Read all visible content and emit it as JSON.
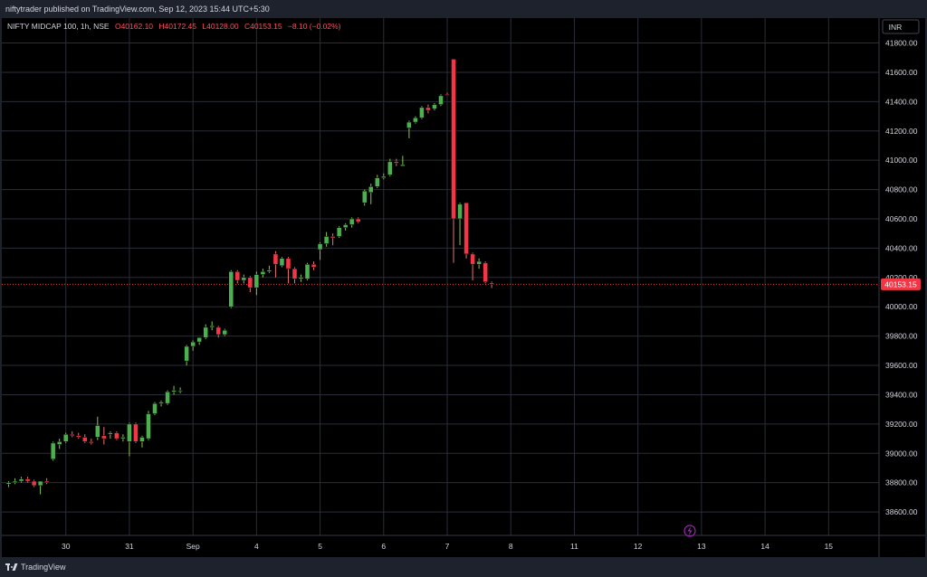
{
  "header": {
    "published": "niftytrader published on TradingView.com, Sep 12, 2023 15:44 UTC+5:30"
  },
  "legend": {
    "symbol": "NIFTY MIDCAP 100, 1h, NSE",
    "open": "O40162.10",
    "high": "H40172.45",
    "low": "L40128.00",
    "close": "C40153.15",
    "change": "−8.10 (−0.02%)"
  },
  "currency_button": "INR",
  "footer": {
    "brand": "TradingView"
  },
  "colors": {
    "up": "#4caf50",
    "down": "#f23645",
    "grid": "#2a2e39",
    "price_line": "#f23645",
    "text": "#d1d4dc",
    "background": "#000000"
  },
  "chart_data": {
    "type": "candlestick",
    "ylim": [
      38440,
      41970
    ],
    "yticks": [
      38600,
      38800,
      39000,
      39200,
      39400,
      39600,
      39800,
      40000,
      40200,
      40400,
      40600,
      40800,
      41000,
      41200,
      41400,
      41600,
      41800
    ],
    "x_axis_ticks": [
      {
        "label": "30",
        "index": 9
      },
      {
        "label": "31",
        "index": 19
      },
      {
        "label": "Sep",
        "index": 29
      },
      {
        "label": "4",
        "index": 39
      },
      {
        "label": "5",
        "index": 49
      },
      {
        "label": "6",
        "index": 59
      },
      {
        "label": "7",
        "index": 69
      },
      {
        "label": "8",
        "index": 79
      },
      {
        "label": "11",
        "index": 89
      },
      {
        "label": "12",
        "index": 99
      },
      {
        "label": "13",
        "index": 109
      },
      {
        "label": "14",
        "index": 119
      },
      {
        "label": "15",
        "index": 129
      }
    ],
    "total_slots": 138,
    "last_price": {
      "value": 40153.15,
      "label": "40153.15"
    },
    "candles": [
      {
        "o": 38790,
        "h": 38810,
        "l": 38770,
        "c": 38800
      },
      {
        "o": 38800,
        "h": 38830,
        "l": 38790,
        "c": 38810
      },
      {
        "o": 38810,
        "h": 38840,
        "l": 38800,
        "c": 38825
      },
      {
        "o": 38825,
        "h": 38840,
        "l": 38800,
        "c": 38810
      },
      {
        "o": 38810,
        "h": 38820,
        "l": 38770,
        "c": 38780
      },
      {
        "o": 38780,
        "h": 38800,
        "l": 38720,
        "c": 38810
      },
      {
        "o": 38810,
        "h": 38830,
        "l": 38790,
        "c": 38800
      },
      {
        "o": 38960,
        "h": 39080,
        "l": 38950,
        "c": 39070
      },
      {
        "o": 39060,
        "h": 39100,
        "l": 39030,
        "c": 39080
      },
      {
        "o": 39080,
        "h": 39140,
        "l": 39070,
        "c": 39130
      },
      {
        "o": 39130,
        "h": 39150,
        "l": 39110,
        "c": 39120
      },
      {
        "o": 39120,
        "h": 39140,
        "l": 39100,
        "c": 39110
      },
      {
        "o": 39110,
        "h": 39130,
        "l": 39070,
        "c": 39080
      },
      {
        "o": 39080,
        "h": 39100,
        "l": 39060,
        "c": 39070
      },
      {
        "o": 39110,
        "h": 39250,
        "l": 39090,
        "c": 39190
      },
      {
        "o": 39120,
        "h": 39180,
        "l": 39060,
        "c": 39100
      },
      {
        "o": 39130,
        "h": 39150,
        "l": 39100,
        "c": 39140
      },
      {
        "o": 39140,
        "h": 39150,
        "l": 39090,
        "c": 39100
      },
      {
        "o": 39100,
        "h": 39130,
        "l": 39080,
        "c": 39110
      },
      {
        "o": 39080,
        "h": 39210,
        "l": 38980,
        "c": 39200
      },
      {
        "o": 39200,
        "h": 39210,
        "l": 39070,
        "c": 39080
      },
      {
        "o": 39080,
        "h": 39120,
        "l": 39040,
        "c": 39110
      },
      {
        "o": 39100,
        "h": 39290,
        "l": 39090,
        "c": 39270
      },
      {
        "o": 39270,
        "h": 39350,
        "l": 39260,
        "c": 39340
      },
      {
        "o": 39340,
        "h": 39360,
        "l": 39320,
        "c": 39350
      },
      {
        "o": 39340,
        "h": 39430,
        "l": 39330,
        "c": 39420
      },
      {
        "o": 39420,
        "h": 39460,
        "l": 39400,
        "c": 39430
      },
      {
        "o": 39430,
        "h": 39450,
        "l": 39410,
        "c": 39430
      },
      {
        "o": 39630,
        "h": 39740,
        "l": 39600,
        "c": 39730
      },
      {
        "o": 39730,
        "h": 39770,
        "l": 39700,
        "c": 39760
      },
      {
        "o": 39760,
        "h": 39790,
        "l": 39740,
        "c": 39790
      },
      {
        "o": 39790,
        "h": 39880,
        "l": 39780,
        "c": 39860
      },
      {
        "o": 39860,
        "h": 39900,
        "l": 39840,
        "c": 39870
      },
      {
        "o": 39860,
        "h": 39870,
        "l": 39790,
        "c": 39810
      },
      {
        "o": 39810,
        "h": 39850,
        "l": 39800,
        "c": 39840
      },
      {
        "o": 40000,
        "h": 40250,
        "l": 39990,
        "c": 40240
      },
      {
        "o": 40240,
        "h": 40250,
        "l": 40160,
        "c": 40180
      },
      {
        "o": 40180,
        "h": 40220,
        "l": 40160,
        "c": 40200
      },
      {
        "o": 40200,
        "h": 40210,
        "l": 40100,
        "c": 40130
      },
      {
        "o": 40130,
        "h": 40240,
        "l": 40080,
        "c": 40220
      },
      {
        "o": 40220,
        "h": 40260,
        "l": 40200,
        "c": 40240
      },
      {
        "o": 40240,
        "h": 40280,
        "l": 40230,
        "c": 40250
      },
      {
        "o": 40360,
        "h": 40380,
        "l": 40200,
        "c": 40290
      },
      {
        "o": 40280,
        "h": 40340,
        "l": 40270,
        "c": 40330
      },
      {
        "o": 40330,
        "h": 40340,
        "l": 40160,
        "c": 40260
      },
      {
        "o": 40260,
        "h": 40270,
        "l": 40160,
        "c": 40190
      },
      {
        "o": 40190,
        "h": 40220,
        "l": 40170,
        "c": 40200
      },
      {
        "o": 40190,
        "h": 40300,
        "l": 40180,
        "c": 40290
      },
      {
        "o": 40290,
        "h": 40310,
        "l": 40250,
        "c": 40270
      },
      {
        "o": 40390,
        "h": 40440,
        "l": 40320,
        "c": 40430
      },
      {
        "o": 40430,
        "h": 40510,
        "l": 40410,
        "c": 40480
      },
      {
        "o": 40480,
        "h": 40500,
        "l": 40420,
        "c": 40470
      },
      {
        "o": 40480,
        "h": 40550,
        "l": 40470,
        "c": 40540
      },
      {
        "o": 40540,
        "h": 40570,
        "l": 40520,
        "c": 40560
      },
      {
        "o": 40560,
        "h": 40610,
        "l": 40540,
        "c": 40600
      },
      {
        "o": 40600,
        "h": 40610,
        "l": 40570,
        "c": 40580
      },
      {
        "o": 40710,
        "h": 40800,
        "l": 40690,
        "c": 40790
      },
      {
        "o": 40780,
        "h": 40840,
        "l": 40700,
        "c": 40820
      },
      {
        "o": 40820,
        "h": 40900,
        "l": 40810,
        "c": 40880
      },
      {
        "o": 40880,
        "h": 40910,
        "l": 40870,
        "c": 40890
      },
      {
        "o": 40900,
        "h": 41010,
        "l": 40890,
        "c": 40990
      },
      {
        "o": 40990,
        "h": 41010,
        "l": 40960,
        "c": 40980
      },
      {
        "o": 40960,
        "h": 41030,
        "l": 40960,
        "c": 40970
      },
      {
        "o": 41220,
        "h": 41270,
        "l": 41150,
        "c": 41260
      },
      {
        "o": 41260,
        "h": 41300,
        "l": 41250,
        "c": 41290
      },
      {
        "o": 41290,
        "h": 41370,
        "l": 41280,
        "c": 41360
      },
      {
        "o": 41360,
        "h": 41380,
        "l": 41320,
        "c": 41340
      },
      {
        "o": 41350,
        "h": 41390,
        "l": 41340,
        "c": 41380
      },
      {
        "o": 41380,
        "h": 41450,
        "l": 41370,
        "c": 41440
      },
      {
        "o": 41450,
        "h": 41460,
        "l": 41440,
        "c": 41445
      },
      {
        "o": 41690,
        "h": 41690,
        "l": 40300,
        "c": 40600
      },
      {
        "o": 40600,
        "h": 40710,
        "l": 40420,
        "c": 40700
      },
      {
        "o": 40710,
        "h": 40710,
        "l": 40330,
        "c": 40360
      },
      {
        "o": 40360,
        "h": 40370,
        "l": 40180,
        "c": 40290
      },
      {
        "o": 40290,
        "h": 40330,
        "l": 40260,
        "c": 40310
      },
      {
        "o": 40300,
        "h": 40310,
        "l": 40160,
        "c": 40170
      },
      {
        "o": 40162.1,
        "h": 40172.45,
        "l": 40128,
        "c": 40153.15
      }
    ]
  }
}
